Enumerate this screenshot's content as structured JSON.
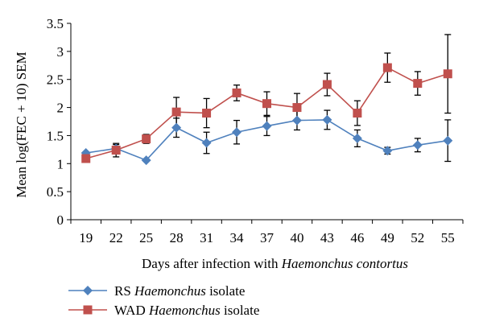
{
  "chart_data": {
    "type": "line",
    "x": [
      19,
      22,
      25,
      28,
      31,
      34,
      37,
      40,
      43,
      46,
      49,
      52,
      55
    ],
    "xlabel_prefix": "Days after infection with ",
    "xlabel_italic": "Haemonchus contortus",
    "ylabel": "Mean log(FEC + 10) SEM",
    "ylim": [
      0,
      3.5
    ],
    "yticks": [
      0,
      0.5,
      1,
      1.5,
      2,
      2.5,
      3,
      3.5
    ],
    "ytick_labels": [
      "0",
      "0.5",
      "1",
      "1.5",
      "2",
      "2.5",
      "3",
      "3.5"
    ],
    "grid": false,
    "legend_placement": "bottom-left",
    "series": [
      {
        "name_prefix": "RS ",
        "name_italic": "Haemonchus",
        "name_suffix": " isolate",
        "color": "#4F81BD",
        "marker": "diamond",
        "values": [
          1.19,
          1.27,
          1.06,
          1.64,
          1.37,
          1.56,
          1.67,
          1.77,
          1.78,
          1.45,
          1.23,
          1.33,
          1.41
        ],
        "errors": [
          0.0,
          0.07,
          0.0,
          0.17,
          0.19,
          0.21,
          0.17,
          0.17,
          0.17,
          0.15,
          0.06,
          0.12,
          0.37
        ]
      },
      {
        "name_prefix": "WAD ",
        "name_italic": "Haemonchus",
        "name_suffix": " isolate",
        "color": "#C0504D",
        "marker": "square",
        "values": [
          1.09,
          1.24,
          1.44,
          1.92,
          1.9,
          2.26,
          2.07,
          2.0,
          2.41,
          1.9,
          2.71,
          2.43,
          2.6
        ],
        "errors": [
          0.0,
          0.12,
          0.08,
          0.26,
          0.26,
          0.14,
          0.21,
          0.25,
          0.2,
          0.22,
          0.26,
          0.21,
          0.7
        ]
      }
    ]
  }
}
